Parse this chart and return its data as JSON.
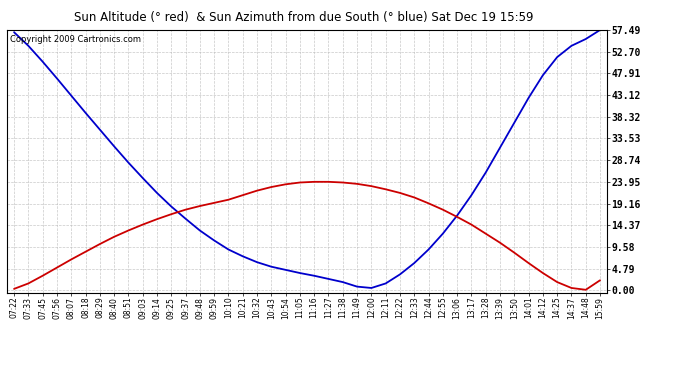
{
  "title": "Sun Altitude (° red)  & Sun Azimuth from due South (° blue) Sat Dec 19 15:59",
  "copyright_text": "Copyright 2009 Cartronics.com",
  "yticks": [
    0.0,
    4.79,
    9.58,
    14.37,
    19.16,
    23.95,
    28.74,
    33.53,
    38.32,
    43.12,
    47.91,
    52.7,
    57.49
  ],
  "ymax": 57.49,
  "ymin": 0.0,
  "bg_color": "#ffffff",
  "plot_bg_color": "#ffffff",
  "grid_color": "#bbbbbb",
  "line_color_red": "#cc0000",
  "line_color_blue": "#0000cc",
  "x_labels": [
    "07:22",
    "07:33",
    "07:45",
    "07:56",
    "08:07",
    "08:18",
    "08:29",
    "08:40",
    "08:51",
    "09:03",
    "09:14",
    "09:25",
    "09:37",
    "09:48",
    "09:59",
    "10:10",
    "10:21",
    "10:32",
    "10:43",
    "10:54",
    "11:05",
    "11:16",
    "11:27",
    "11:38",
    "11:49",
    "12:00",
    "12:11",
    "12:22",
    "12:33",
    "12:44",
    "12:55",
    "13:06",
    "13:17",
    "13:28",
    "13:39",
    "13:50",
    "14:01",
    "14:12",
    "14:25",
    "14:37",
    "14:48",
    "15:59"
  ],
  "altitude_values": [
    0.3,
    1.5,
    3.2,
    5.0,
    6.8,
    8.5,
    10.2,
    11.8,
    13.2,
    14.5,
    15.7,
    16.8,
    17.8,
    18.6,
    19.3,
    20.0,
    21.0,
    22.0,
    22.8,
    23.4,
    23.8,
    23.95,
    23.95,
    23.8,
    23.5,
    23.0,
    22.3,
    21.5,
    20.5,
    19.2,
    17.8,
    16.2,
    14.5,
    12.5,
    10.5,
    8.3,
    6.0,
    3.8,
    1.8,
    0.5,
    0.1,
    2.2
  ],
  "azimuth_values": [
    57.0,
    54.0,
    50.5,
    46.8,
    43.0,
    39.2,
    35.5,
    31.8,
    28.2,
    24.8,
    21.5,
    18.5,
    15.8,
    13.2,
    11.0,
    9.0,
    7.5,
    6.2,
    5.2,
    4.5,
    3.8,
    3.2,
    2.5,
    1.8,
    0.8,
    0.5,
    1.5,
    3.5,
    6.0,
    9.0,
    12.5,
    16.5,
    21.0,
    26.0,
    31.5,
    37.0,
    42.5,
    47.5,
    51.5,
    54.0,
    55.5,
    57.49
  ]
}
